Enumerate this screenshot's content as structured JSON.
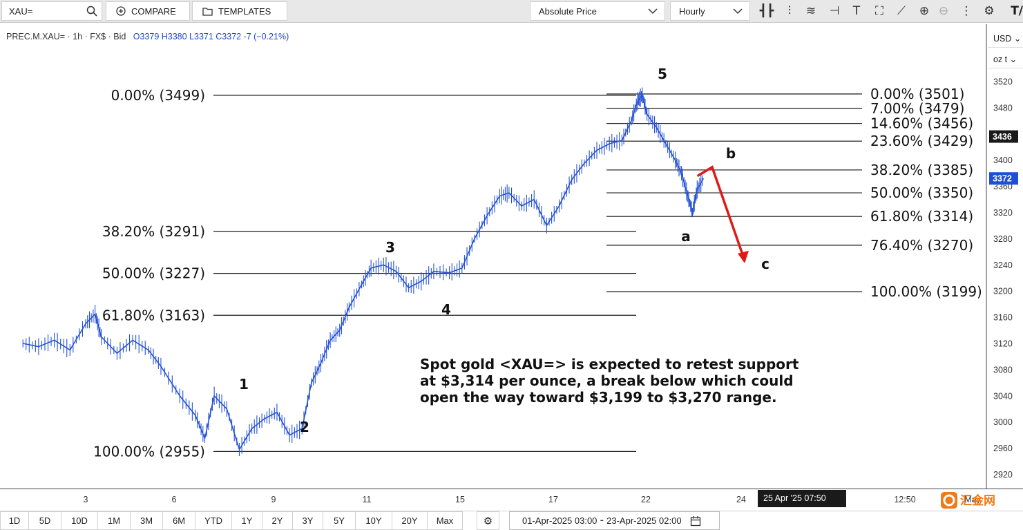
{
  "toolbar": {
    "symbol_value": "XAU=",
    "compare_label": "COMPARE",
    "templates_label": "TEMPLATES",
    "price_mode": "Absolute Price",
    "interval": "Hourly",
    "icons": [
      "candle-icon",
      "bar-style-icon",
      "wave-icon",
      "line-tool-icon",
      "text-tool-icon",
      "frame-tool-icon",
      "draw-icon",
      "zoom-in-icon",
      "zoom-out-icon",
      "more-icon",
      "settings-icon"
    ],
    "brand_mark": "T/"
  },
  "info_line": {
    "instrument": "PREC.M.XAU= · 1h · FX$ · Bid",
    "ohlc": "O3379 H3380 L3371 C3372 -7 (−0.21%)"
  },
  "axis": {
    "currency": "USD",
    "unit": "oz t",
    "current_price_label": "3436",
    "last_price_label": "3372",
    "current_price_color": "#1a1a1a",
    "last_price_color": "#1e4fd8"
  },
  "date_axis": {
    "crosshair_label": "25 Apr '25   07:50"
  },
  "range_bar": {
    "buttons": [
      "1D",
      "5D",
      "10D",
      "1M",
      "3M",
      "6M",
      "YTD",
      "1Y",
      "2Y",
      "3Y",
      "5Y",
      "10Y",
      "20Y",
      "Max"
    ],
    "date_range": "01-Apr-2025 03:00  ⁃  23-Apr-2025 02:00"
  },
  "annotation_text": [
    "Spot gold <XAU=> is expected to retest support",
    "at $3,314 per ounce, a break below which could",
    "open the way toward $3,199 to $3,270 range."
  ],
  "watermark_text": "汇金网",
  "chart_data": {
    "type": "line",
    "title": "",
    "xlabel": "",
    "ylabel": "",
    "ylim": [
      2900,
      3540
    ],
    "y_ticks": [
      2920,
      2960,
      3000,
      3040,
      3080,
      3120,
      3160,
      3200,
      3240,
      3280,
      3320,
      3360,
      3400,
      3440,
      3480,
      3520
    ],
    "x_ticks": [
      {
        "label": "3",
        "day": 3
      },
      {
        "label": "6",
        "day": 6
      },
      {
        "label": "9",
        "day": 9
      },
      {
        "label": "11",
        "day": 11
      },
      {
        "label": "15",
        "day": 15
      },
      {
        "label": "17",
        "day": 17
      },
      {
        "label": "22",
        "day": 22
      },
      {
        "label": "24",
        "day": 24
      },
      {
        "label": "12:50",
        "day": 26
      },
      {
        "label": "May",
        "day": 27
      }
    ],
    "series": [
      {
        "values": [
          [
            1,
            3120
          ],
          [
            1.5,
            3115
          ],
          [
            2,
            3125
          ],
          [
            2.5,
            3110
          ],
          [
            3,
            3150
          ],
          [
            3.3,
            3165
          ],
          [
            3.5,
            3130
          ],
          [
            4,
            3105
          ],
          [
            4.5,
            3125
          ],
          [
            5,
            3110
          ],
          [
            5.4,
            3085
          ],
          [
            6,
            3040
          ],
          [
            6.5,
            3010
          ],
          [
            6.8,
            2975
          ],
          [
            7.1,
            3040
          ],
          [
            7.5,
            3020
          ],
          [
            7.9,
            2958
          ],
          [
            8.3,
            2990
          ],
          [
            8.7,
            3005
          ],
          [
            9.1,
            3015
          ],
          [
            9.5,
            2980
          ],
          [
            9.9,
            2990
          ],
          [
            10.2,
            3060
          ],
          [
            10.5,
            3090
          ],
          [
            10.8,
            3125
          ],
          [
            11.1,
            3140
          ],
          [
            11.4,
            3175
          ],
          [
            11.8,
            3210
          ],
          [
            12.1,
            3235
          ],
          [
            12.5,
            3240
          ],
          [
            12.9,
            3230
          ],
          [
            13.3,
            3205
          ],
          [
            13.7,
            3215
          ],
          [
            14.1,
            3230
          ],
          [
            14.6,
            3228
          ],
          [
            15.0,
            3235
          ],
          [
            15.4,
            3280
          ],
          [
            15.8,
            3315
          ],
          [
            16.2,
            3345
          ],
          [
            16.5,
            3350
          ],
          [
            16.9,
            3330
          ],
          [
            17.3,
            3340
          ],
          [
            17.7,
            3300
          ],
          [
            18.1,
            3330
          ],
          [
            18.5,
            3370
          ],
          [
            18.9,
            3395
          ],
          [
            19.3,
            3415
          ],
          [
            19.7,
            3425
          ],
          [
            20.1,
            3430
          ],
          [
            20.4,
            3460
          ],
          [
            20.6,
            3490
          ],
          [
            20.75,
            3499
          ],
          [
            20.9,
            3470
          ],
          [
            21.2,
            3450
          ],
          [
            21.5,
            3425
          ],
          [
            21.8,
            3400
          ],
          [
            22.0,
            3380
          ],
          [
            22.2,
            3345
          ],
          [
            22.35,
            3320
          ],
          [
            22.5,
            3355
          ],
          [
            22.7,
            3372
          ]
        ]
      }
    ],
    "wave_labels": [
      "1",
      "2",
      "3",
      "4",
      "5",
      "a",
      "b",
      "c"
    ],
    "fib_left": [
      {
        "label": "0.00% (3499)",
        "price": 3499
      },
      {
        "label": "38.20% (3291)",
        "price": 3291
      },
      {
        "label": "50.00% (3227)",
        "price": 3227
      },
      {
        "label": "61.80% (3163)",
        "price": 3163
      },
      {
        "label": "100.00% (2955)",
        "price": 2955
      }
    ],
    "fib_right": [
      {
        "label": "0.00% (3501)",
        "price": 3501
      },
      {
        "label": "7.00% (3479)",
        "price": 3479
      },
      {
        "label": "14.60% (3456)",
        "price": 3456
      },
      {
        "label": "23.60% (3429)",
        "price": 3429
      },
      {
        "label": "38.20% (3385)",
        "price": 3385
      },
      {
        "label": "50.00% (3350)",
        "price": 3350
      },
      {
        "label": "61.80% (3314)",
        "price": 3314
      },
      {
        "label": "76.40% (3270)",
        "price": 3270
      },
      {
        "label": "100.00% (3199)",
        "price": 3199
      }
    ],
    "projection": {
      "from_price": 3385,
      "to_price": 3270,
      "color": "#e01818"
    },
    "series_color": "#2451d6"
  }
}
